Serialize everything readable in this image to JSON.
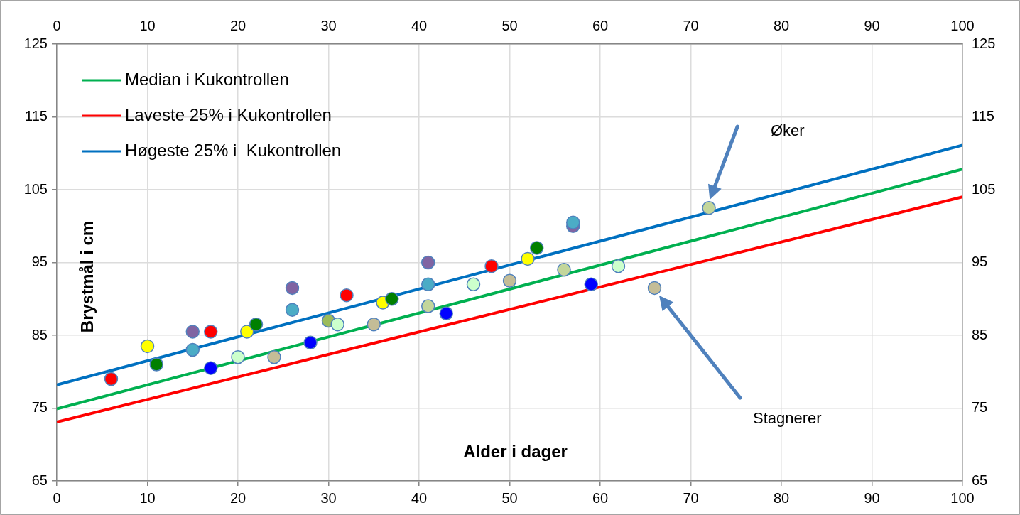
{
  "chart_data": {
    "type": "scatter",
    "xlabel": "Alder i dager",
    "ylabel": "Brystmål i cm",
    "xlim": [
      0,
      100
    ],
    "xticks": [
      0,
      10,
      20,
      30,
      40,
      50,
      60,
      70,
      80,
      90,
      100
    ],
    "x2lim": [
      0,
      100
    ],
    "x2ticks": [
      0,
      10,
      20,
      30,
      40,
      50,
      60,
      70,
      80,
      90,
      100
    ],
    "ylim": [
      65,
      125
    ],
    "yticks": [
      65,
      75,
      85,
      95,
      105,
      115,
      125
    ],
    "y2lim": [
      65,
      125
    ],
    "y2ticks": [
      65,
      75,
      85,
      95,
      105,
      115,
      125
    ],
    "grid": true,
    "legend": "top left",
    "series": [
      {
        "name": "Median i Kukontrollen",
        "type": "line",
        "color": "#00b050",
        "x": [
          0,
          100
        ],
        "values": [
          74.9,
          107.8
        ]
      },
      {
        "name": "Laveste 25% i Kukontrollen",
        "type": "line",
        "color": "#ff0000",
        "x": [
          0,
          100
        ],
        "values": [
          73.1,
          104.0
        ]
      },
      {
        "name": "Høgeste 25% i  Kukontrollen",
        "type": "line",
        "color": "#0070c0",
        "x": [
          0,
          100
        ],
        "values": [
          78.2,
          111.1
        ]
      },
      {
        "type": "scatter",
        "marker": "circle",
        "x": [
          6,
          10,
          11,
          15,
          15,
          17,
          17,
          20,
          21,
          22,
          24,
          26,
          26,
          28,
          30,
          31,
          32,
          35,
          36,
          37,
          41,
          41,
          41,
          43,
          46,
          48,
          50,
          52,
          53,
          56,
          57,
          57,
          59,
          62,
          66,
          72
        ],
        "values": [
          79,
          83.5,
          81,
          85.5,
          83,
          85.5,
          80.5,
          82,
          85.5,
          86.5,
          82,
          91.5,
          88.5,
          84,
          87,
          86.5,
          90.5,
          86.5,
          89.5,
          90,
          95,
          92,
          89,
          88,
          92,
          94.5,
          92.5,
          95.5,
          97,
          94,
          100,
          100.5,
          92,
          94.5,
          91.5,
          102.5
        ],
        "colors": [
          "#ff0000",
          "#ffff00",
          "#008000",
          "#8064a2",
          "#4bacc6",
          "#ff0000",
          "#0000ff",
          "#ccffcc",
          "#ffff00",
          "#008000",
          "#c4bd97",
          "#8064a2",
          "#4bacc6",
          "#0000ff",
          "#9bbb59",
          "#ccffcc",
          "#ff0000",
          "#c4bd97",
          "#ffff00",
          "#008000",
          "#8064a2",
          "#4bacc6",
          "#c3d69b",
          "#0000ff",
          "#ccffcc",
          "#ff0000",
          "#c4bd97",
          "#ffff00",
          "#008000",
          "#c3d69b",
          "#8064a2",
          "#4bacc6",
          "#0000ff",
          "#ccffcc",
          "#c4bd97",
          "#c3d69b"
        ]
      }
    ],
    "annotations": [
      "Øker",
      "Stagnerer"
    ]
  }
}
